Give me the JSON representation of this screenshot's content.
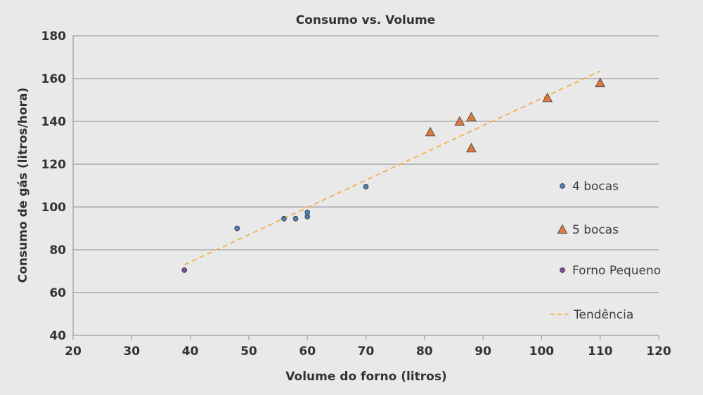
{
  "chart_data": {
    "type": "scatter",
    "title": "Consumo vs. Volume",
    "xlabel": "Volume do forno (litros)",
    "ylabel": "Consumo de gás (litros/hora)",
    "xlim": [
      20,
      120
    ],
    "ylim": [
      40,
      180
    ],
    "xticks": [
      "20",
      "30",
      "40",
      "50",
      "60",
      "70",
      "80",
      "90",
      "100",
      "110",
      "120"
    ],
    "yticks": [
      "40",
      "60",
      "80",
      "100",
      "120",
      "140",
      "160",
      "180"
    ],
    "grid": "horizontal",
    "legend_position": "right",
    "series": [
      {
        "name": "4 bocas",
        "marker": "circle",
        "color": "#4f81bd",
        "points": [
          [
            48,
            90
          ],
          [
            56,
            94.5
          ],
          [
            58,
            94.5
          ],
          [
            60,
            95.5
          ],
          [
            60,
            97.5
          ],
          [
            70,
            109.5
          ]
        ]
      },
      {
        "name": "5 bocas",
        "marker": "triangle",
        "color": "#e07a3a",
        "points": [
          [
            81,
            135
          ],
          [
            86,
            140
          ],
          [
            88,
            142
          ],
          [
            88,
            127.5
          ],
          [
            101,
            151
          ],
          [
            110,
            158
          ]
        ]
      },
      {
        "name": "Forno Pequeno",
        "marker": "circle",
        "color": "#7b4fa0",
        "points": [
          [
            39,
            70.5
          ]
        ]
      }
    ],
    "trendline": {
      "name": "Tendência",
      "color": "#f0b24a",
      "style": "dashed",
      "points": [
        [
          39,
          73
        ],
        [
          110,
          163.5
        ]
      ]
    }
  }
}
